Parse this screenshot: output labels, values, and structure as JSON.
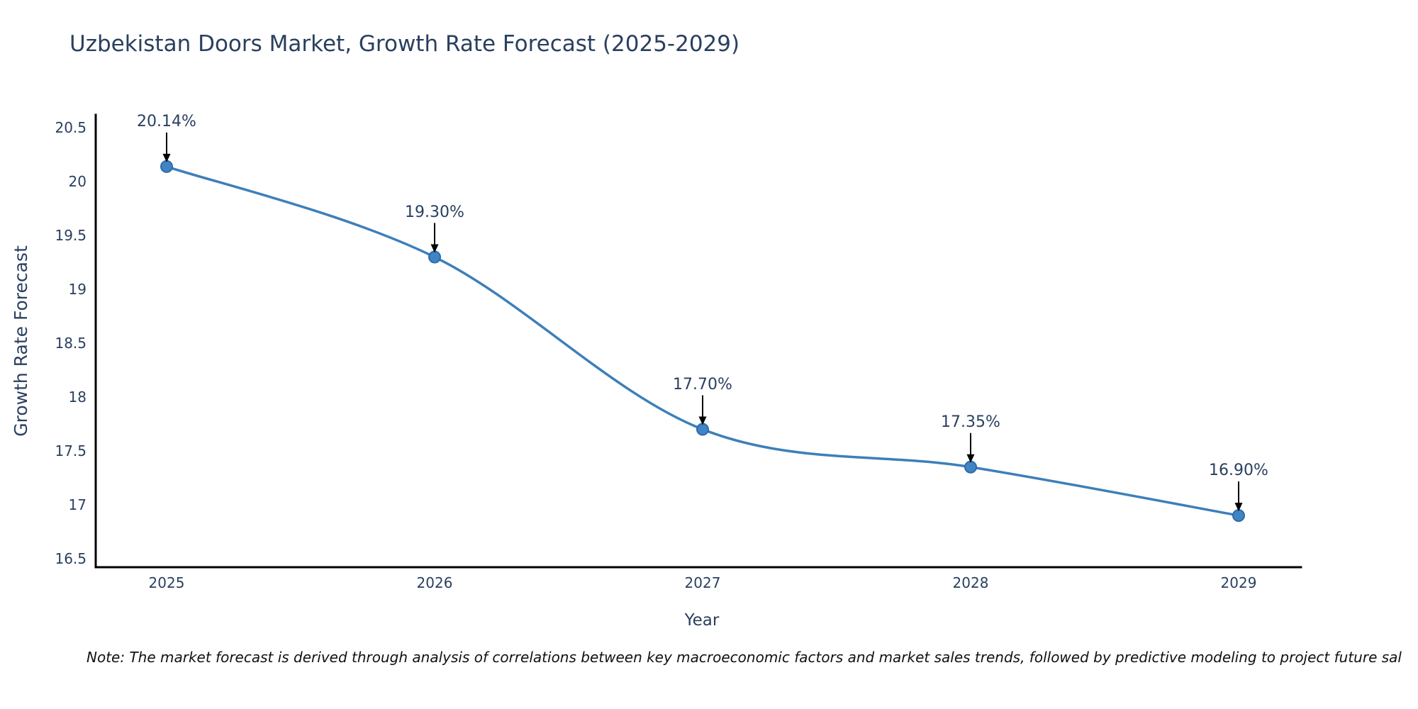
{
  "page": {
    "background": "#ffffff"
  },
  "chart_data": {
    "type": "line",
    "title": "Uzbekistan Doors Market, Growth Rate Forecast (2025-2029)",
    "xlabel": "Year",
    "ylabel": "Growth Rate Forecast",
    "categories": [
      "2025",
      "2026",
      "2027",
      "2028",
      "2029"
    ],
    "x": [
      2025,
      2026,
      2027,
      2028,
      2029
    ],
    "y": [
      20.14,
      19.3,
      17.7,
      17.35,
      16.9
    ],
    "point_labels": [
      "20.14%",
      "19.30%",
      "17.70%",
      "17.35%",
      "16.90%"
    ],
    "line_shape": "spline",
    "markers": true,
    "grid": false,
    "legend": "none",
    "y_ticks": [
      16.5,
      17,
      17.5,
      18,
      18.5,
      19,
      19.5,
      20,
      20.5
    ],
    "ylim": [
      16.42,
      20.62
    ],
    "colors": {
      "line": "#3c7fba",
      "marker_fill": "#3f85c4",
      "marker_edge": "#2f6ba8",
      "axis": "#000000",
      "text": "#2a3f5f",
      "annotation_arrow": "#000000",
      "note_text": "#111111"
    }
  },
  "note": "Note: The market forecast is derived through analysis of correlations between key macroeconomic factors and market sales trends, followed by predictive modeling to project future sal"
}
